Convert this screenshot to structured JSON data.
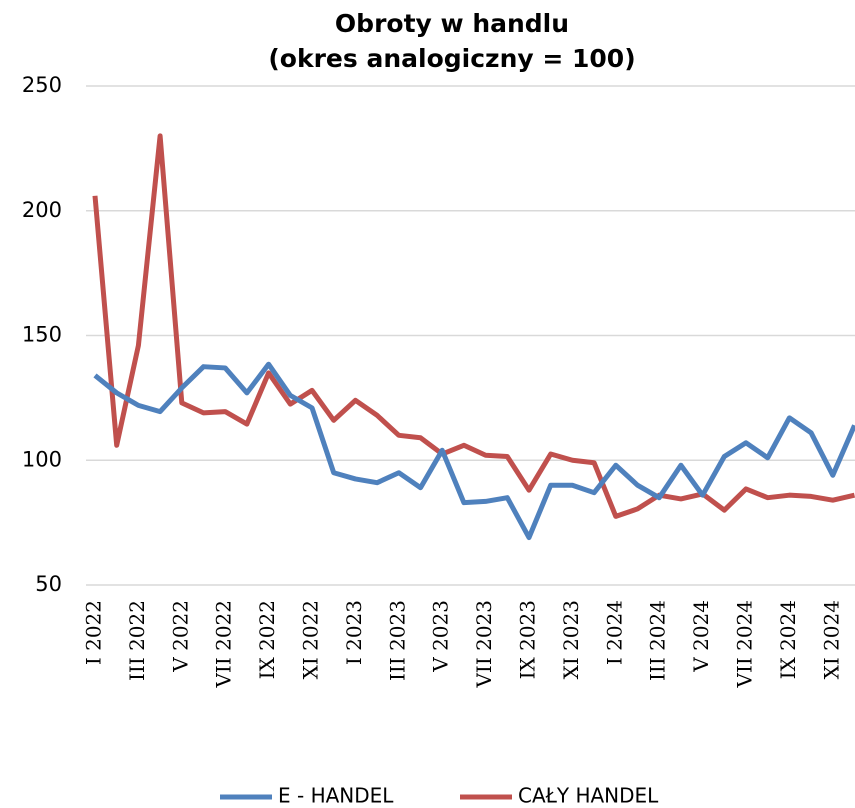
{
  "chart_data": {
    "type": "line",
    "title": "Obroty w handlu",
    "subtitle": "(okres analogiczny = 100)",
    "categories": [
      "I 2022",
      null,
      "III 2022",
      null,
      "V 2022",
      null,
      "VII 2022",
      null,
      "IX 2022",
      null,
      "XI 2022",
      null,
      "I 2023",
      null,
      "III 2023",
      null,
      "V 2023",
      null,
      "VII 2023",
      null,
      "IX 2023",
      null,
      "XI 2023",
      null,
      "I 2024",
      null,
      "III 2024",
      null,
      "V 2024",
      null,
      "VII 2024",
      null,
      "IX 2024",
      null,
      "XI 2024",
      null
    ],
    "series": [
      {
        "name": "E - HANDEL",
        "color": "#4f81bd",
        "values": [
          134,
          127,
          122,
          119.5,
          129,
          137.5,
          137,
          127,
          138.5,
          126,
          121,
          95,
          92.5,
          91,
          95,
          89,
          104,
          83,
          83.5,
          85,
          69,
          90,
          90,
          87,
          98,
          90,
          85,
          98,
          86,
          101.5,
          107,
          101,
          117,
          111,
          94,
          114
        ]
      },
      {
        "name": "CAŁY HANDEL",
        "color": "#c0504d",
        "values": [
          206,
          106,
          146,
          230,
          123,
          119,
          119.5,
          114.5,
          135,
          122.5,
          128,
          116,
          124,
          118,
          110,
          109,
          102.5,
          106,
          102,
          101.5,
          88,
          102.5,
          100,
          99,
          77.5,
          80.5,
          86,
          84.5,
          86.5,
          80,
          88.5,
          85,
          86,
          85.5,
          84,
          86
        ]
      }
    ],
    "ylim": [
      50,
      250
    ],
    "yticks": [
      50,
      100,
      150,
      200,
      250
    ],
    "grid": true,
    "legend": "bottom"
  }
}
